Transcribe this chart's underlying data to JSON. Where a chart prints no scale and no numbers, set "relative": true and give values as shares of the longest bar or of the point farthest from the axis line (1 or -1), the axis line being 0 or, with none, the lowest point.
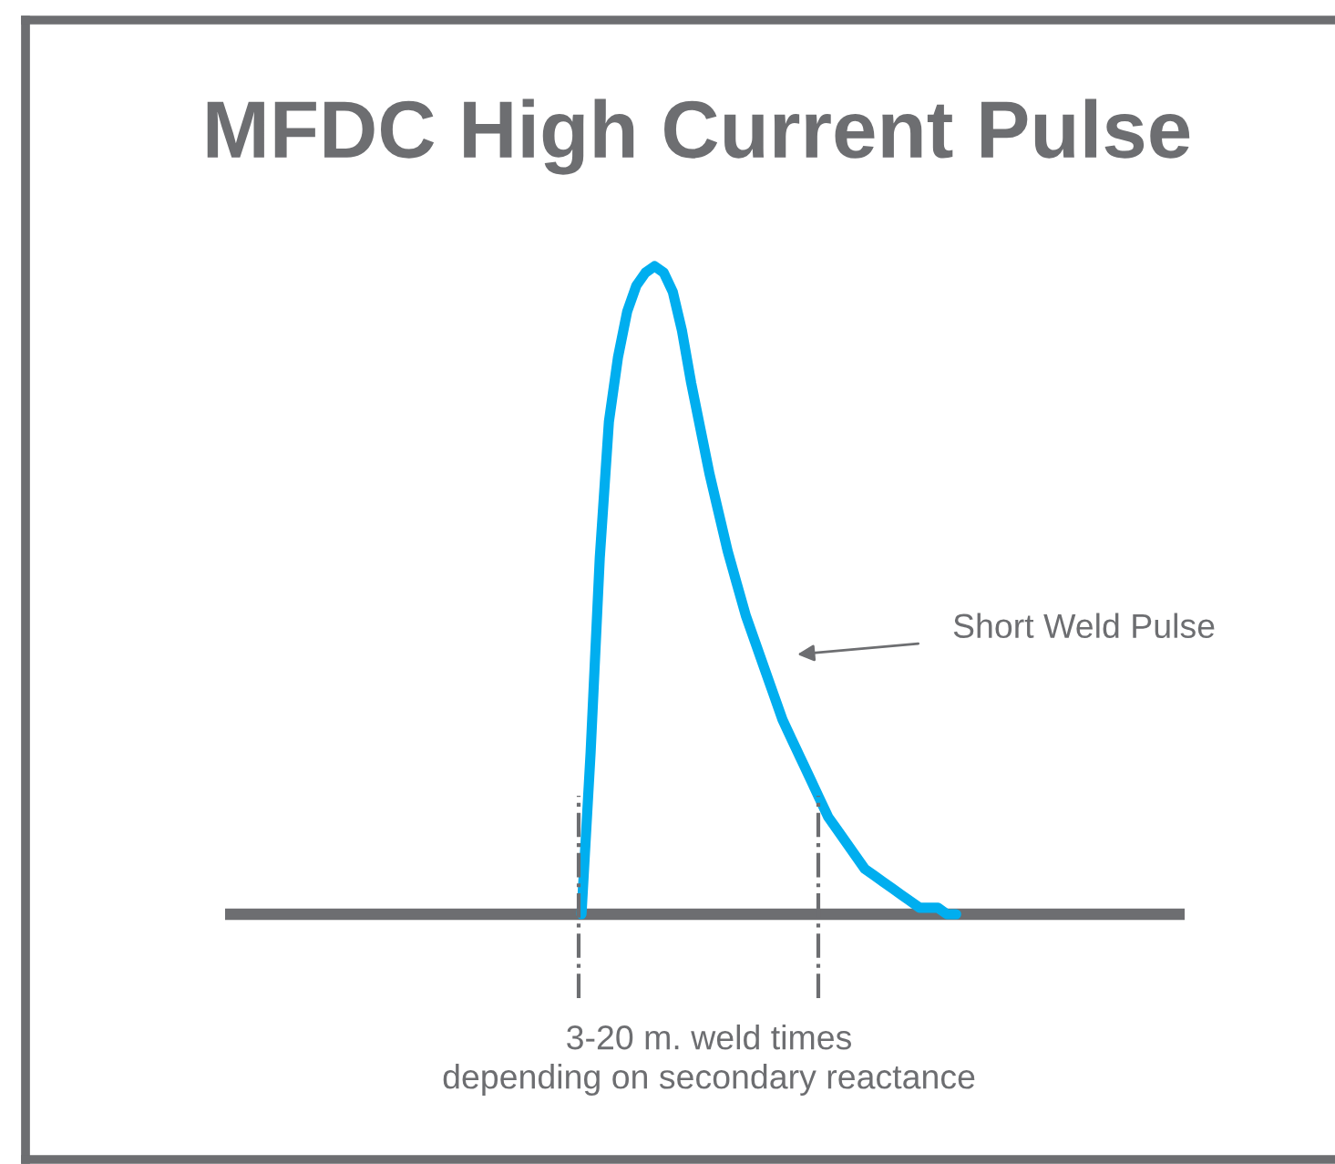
{
  "chart_data": {
    "type": "line",
    "title": "MFDC High Current Pulse",
    "relative": true,
    "categories": [
      null,
      null,
      null,
      null,
      null,
      null,
      null,
      null,
      null,
      null,
      null,
      null,
      null,
      null,
      null,
      null,
      null,
      null,
      null,
      null,
      null,
      null,
      null,
      null,
      null,
      null,
      null,
      null,
      null,
      null,
      null,
      null,
      null,
      null,
      null,
      null,
      null,
      null,
      null,
      null,
      null,
      null,
      null,
      null,
      null,
      null,
      null,
      null,
      null,
      null,
      null,
      null,
      null,
      null,
      null,
      null,
      null,
      null,
      null,
      null,
      null,
      null,
      null,
      null,
      null,
      null,
      null,
      null,
      null,
      null,
      null,
      null,
      null,
      null,
      null,
      null,
      null,
      null,
      null,
      null,
      null,
      null,
      null,
      null,
      null,
      null,
      null,
      null,
      null,
      null,
      null,
      null,
      null,
      null,
      null,
      null,
      null,
      null,
      null,
      null,
      null,
      null,
      null,
      null,
      null,
      null
    ],
    "series": [
      {
        "color": "#00aeef",
        "values": [
          null,
          null,
          null,
          null,
          null,
          null,
          null,
          null,
          null,
          null,
          null,
          null,
          null,
          null,
          null,
          null,
          null,
          null,
          null,
          null,
          null,
          null,
          null,
          null,
          null,
          null,
          null,
          null,
          null,
          null,
          null,
          null,
          null,
          null,
          null,
          null,
          null,
          null,
          null,
          0,
          0.25,
          0.55,
          0.76,
          0.86,
          0.93,
          0.97,
          0.99,
          1.0,
          0.99,
          0.96,
          0.9,
          0.82,
          0.75,
          0.68,
          0.62,
          0.56,
          0.51,
          0.46,
          0.42,
          0.38,
          0.34,
          0.3,
          0.27,
          0.24,
          0.21,
          0.18,
          0.15,
          0.13,
          0.11,
          0.09,
          0.07,
          0.06,
          0.05,
          0.04,
          0.03,
          0.02,
          0.01,
          0.01,
          0.01,
          0,
          0,
          null,
          null,
          null,
          null,
          null,
          null,
          null,
          null,
          null,
          null,
          null,
          null,
          null,
          null,
          null,
          null,
          null,
          null,
          null,
          null,
          null,
          null,
          null,
          null,
          null
        ]
      }
    ],
    "annotations": [
      "Short Weld Pulse",
      "3-20 m. weld times\ndepending on secondary reactance"
    ],
    "tick_labels": false,
    "line_style": "solid",
    "marker": "none"
  }
}
